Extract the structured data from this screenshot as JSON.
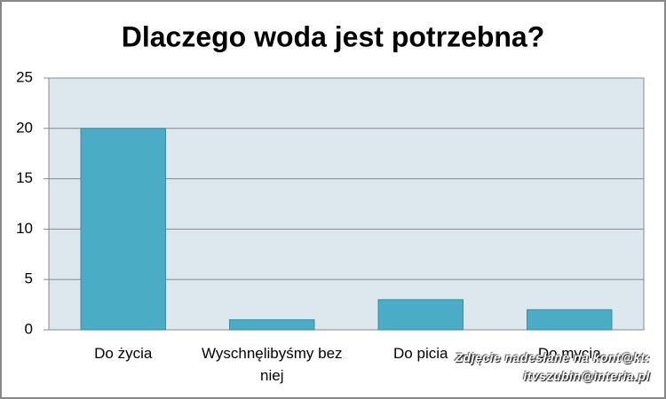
{
  "chart_data": {
    "type": "bar",
    "title": "Dlaczego woda jest potrzebna?",
    "categories": [
      "Do życia",
      "Wyschnęlibyśmy bez niej",
      "Do picia",
      "Do mycia"
    ],
    "values": [
      20,
      1,
      3,
      2
    ],
    "color": "#4bacc6",
    "ylim": [
      0,
      25
    ],
    "yticks": [
      0,
      5,
      10,
      15,
      20,
      25
    ],
    "grid": true,
    "watermark": [
      "Zdjęcie nadesłane na kont@kt:",
      "itvszubin@interia.pl"
    ]
  }
}
